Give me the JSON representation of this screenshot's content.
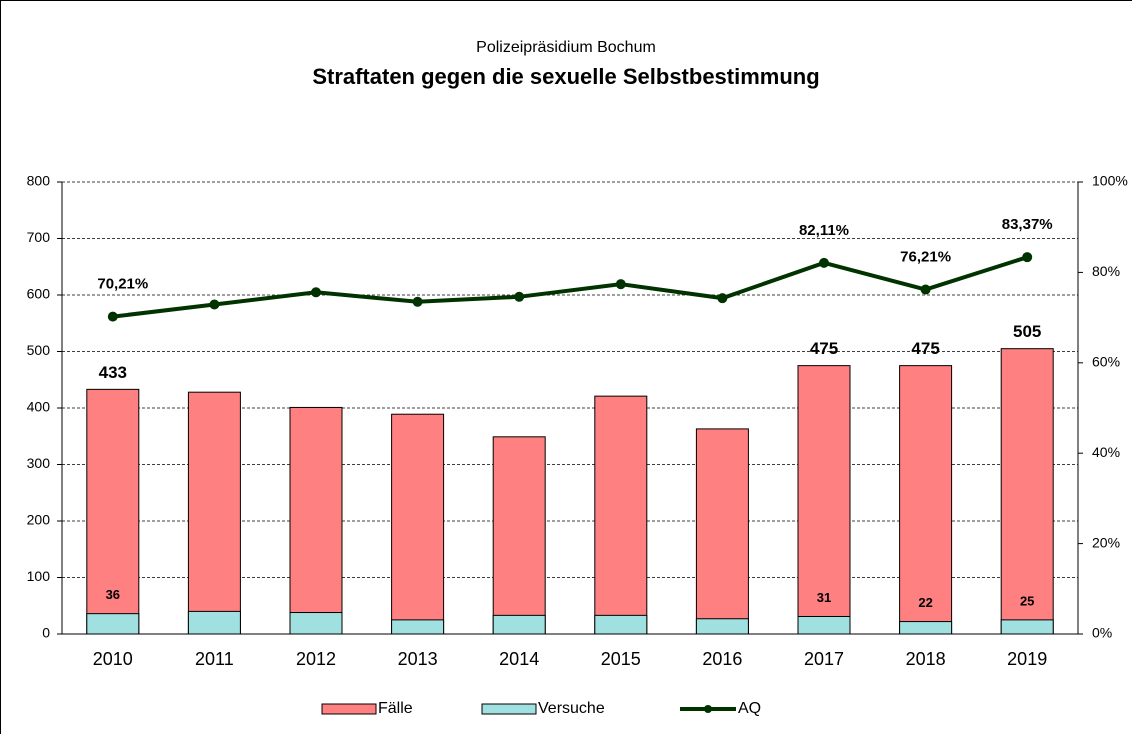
{
  "chart_data": {
    "type": "bar",
    "subtitle": "Polizeipräsidium Bochum",
    "title": "Straftaten gegen die sexuelle Selbstbestimmung",
    "categories": [
      "2010",
      "2011",
      "2012",
      "2013",
      "2014",
      "2015",
      "2016",
      "2017",
      "2018",
      "2019"
    ],
    "series": [
      {
        "name": "Fälle",
        "color": "#ff8080",
        "values": [
          433,
          428,
          401,
          389,
          349,
          421,
          363,
          475,
          475,
          505
        ],
        "value_labels": [
          "433",
          null,
          null,
          null,
          null,
          null,
          null,
          "475",
          "475",
          "505"
        ]
      },
      {
        "name": "Versuche",
        "color": "#a0e0e0",
        "values": [
          36,
          40,
          38,
          25,
          33,
          33,
          27,
          31,
          22,
          25
        ],
        "value_labels": [
          "36",
          null,
          null,
          null,
          null,
          null,
          null,
          "31",
          "22",
          "25"
        ]
      },
      {
        "name": "AQ",
        "color": "#003300",
        "axis": "y2",
        "type": "line",
        "values": [
          70.21,
          72.9,
          75.6,
          73.5,
          74.6,
          77.4,
          74.3,
          82.11,
          76.21,
          83.37
        ],
        "value_labels": [
          "70,21%",
          null,
          null,
          null,
          null,
          null,
          null,
          "82,11%",
          "76,21%",
          "83,37%"
        ]
      }
    ],
    "ylim": [
      0,
      800
    ],
    "yticks": [
      0,
      100,
      200,
      300,
      400,
      500,
      600,
      700,
      800
    ],
    "y2lim": [
      0,
      100
    ],
    "y2ticks": [
      {
        "value": 0,
        "label": "0%"
      },
      {
        "value": 20,
        "label": "20%"
      },
      {
        "value": 40,
        "label": "40%"
      },
      {
        "value": 60,
        "label": "60%"
      },
      {
        "value": 80,
        "label": "80%"
      },
      {
        "value": 100,
        "label": "100%"
      }
    ],
    "grid": true
  }
}
